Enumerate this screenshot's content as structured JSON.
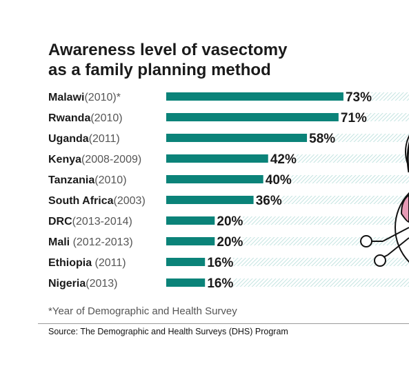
{
  "chart_data": {
    "type": "bar",
    "orientation": "horizontal",
    "title": [
      "Awareness level of vasectomy",
      "as a family planning method"
    ],
    "categories": [
      {
        "country": "Malawi",
        "year": "(2010)*"
      },
      {
        "country": "Rwanda",
        "year": "(2010)"
      },
      {
        "country": "Uganda",
        "year": "(2011)"
      },
      {
        "country": "Kenya",
        "year": "(2008-2009)"
      },
      {
        "country": "Tanzania",
        "year": "(2010)"
      },
      {
        "country": "South Africa",
        "year": "(2003)"
      },
      {
        "country": "DRC",
        "year": "(2013-2014)"
      },
      {
        "country": "Mali",
        "year": " (2012-2013)"
      },
      {
        "country": "Ethiopia",
        "year": " (2011)"
      },
      {
        "country": "Nigeria",
        "year": "(2013)"
      }
    ],
    "values": [
      73,
      71,
      58,
      42,
      40,
      36,
      20,
      20,
      16,
      16
    ],
    "value_suffix": "%",
    "xlim": [
      0,
      100
    ],
    "grid": false,
    "colors": {
      "bar": "#0b8379",
      "hatch": "#c3e3e0",
      "text": "#1a1a1a",
      "year": "#555555"
    }
  },
  "footnote": "*Year of Demographic and Health Survey",
  "source": "Source: The Demographic and Health Surveys (DHS) Program",
  "decoration": {
    "icon": "scissors-icon",
    "colors": {
      "outline": "#111111",
      "pink": "#e79ab5"
    }
  }
}
